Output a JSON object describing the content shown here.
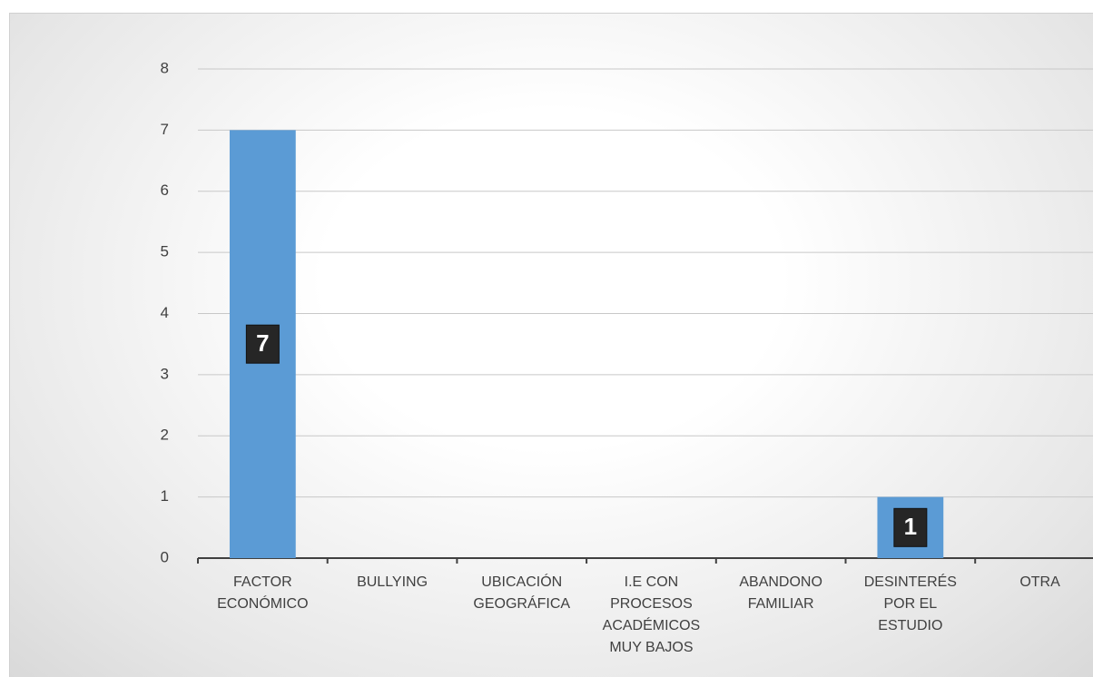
{
  "chart_data": {
    "type": "bar",
    "categories": [
      "FACTOR ECONÓMICO",
      "BULLYING",
      "UBICACIÓN GEOGRÁFICA",
      "I.E CON PROCESOS ACADÉMICOS MUY BAJOS",
      "ABANDONO FAMILIAR",
      "DESINTERÉS POR EL ESTUDIO",
      "OTRA"
    ],
    "values": [
      7,
      0,
      0,
      0,
      0,
      1,
      0
    ],
    "value_labels": [
      "7",
      null,
      null,
      null,
      null,
      "1",
      null
    ],
    "color": "#5b9bd5",
    "ylim": [
      0,
      8
    ],
    "yticks": [
      0,
      1,
      2,
      3,
      4,
      5,
      6,
      7,
      8
    ],
    "grid": true
  }
}
